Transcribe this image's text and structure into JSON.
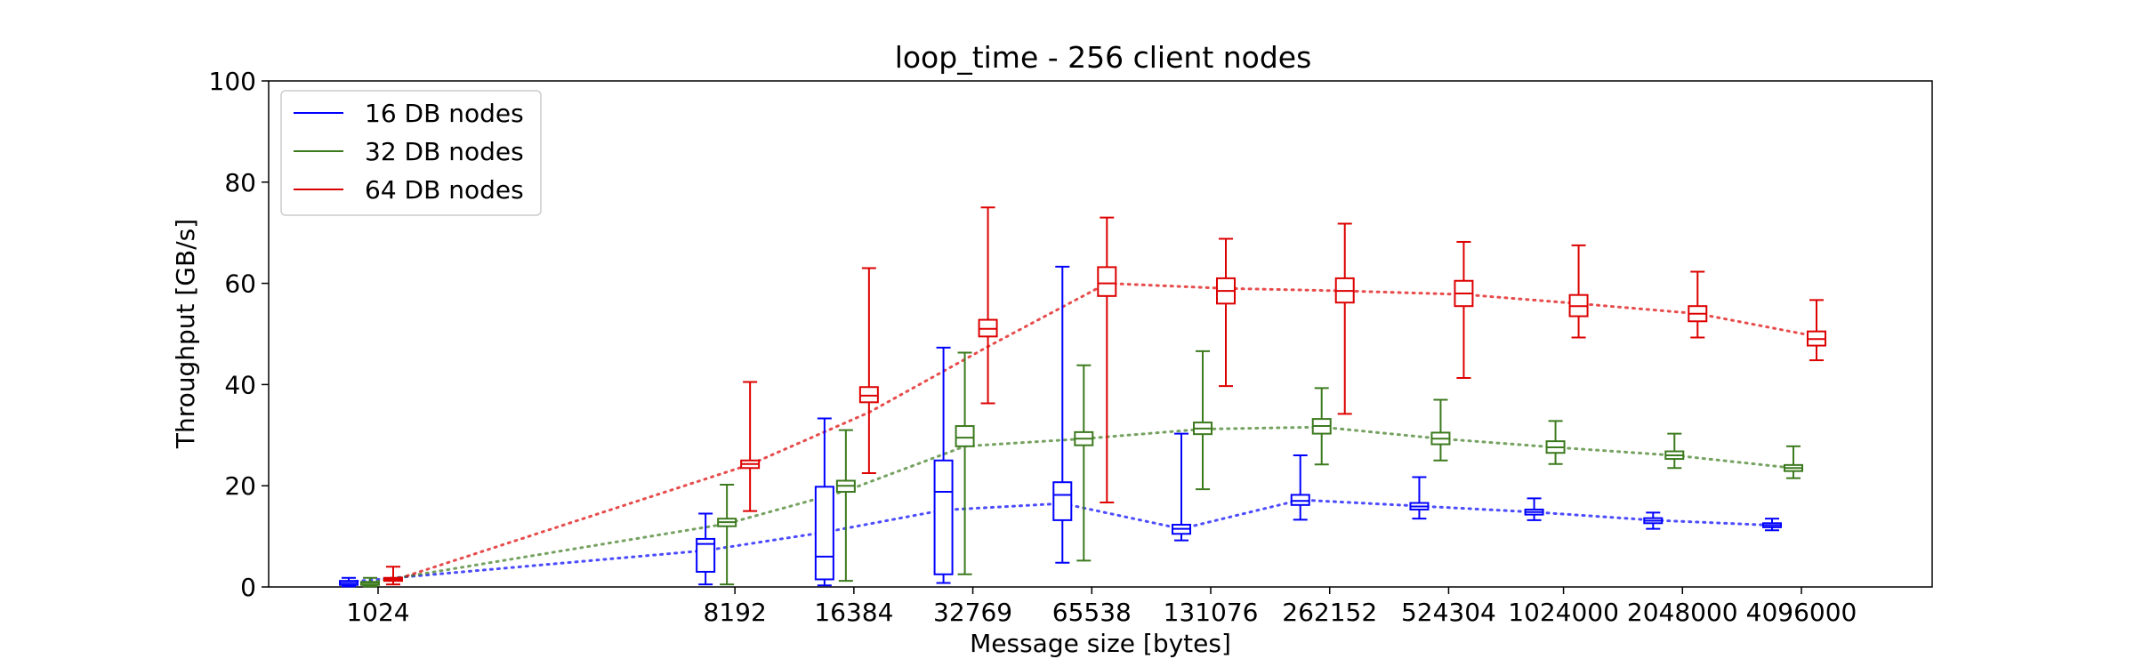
{
  "chart_data": {
    "type": "box",
    "title": "loop_time - 256 client nodes",
    "xlabel": "Message size [bytes]",
    "ylabel": "Throughput [GB/s]",
    "ylim": [
      0,
      100
    ],
    "yticks": [
      0,
      20,
      40,
      60,
      80,
      100
    ],
    "categories": [
      "1024",
      "8192",
      "16384",
      "32769",
      "65538",
      "131076",
      "262152",
      "524304",
      "1024000",
      "2048000",
      "4096000"
    ],
    "grid": false,
    "legend_position": "top-left",
    "series": [
      {
        "name": "16 DB nodes",
        "color": "#0000ff",
        "mean_line": [
          1.0,
          7.2,
          10.8,
          15.2,
          16.5,
          11.5,
          17.2,
          16.0,
          14.8,
          13.2,
          12.2
        ],
        "boxes": [
          {
            "min": 0.1,
            "q1": 0.4,
            "median": 0.8,
            "q3": 1.2,
            "max": 1.8
          },
          {
            "min": 0.5,
            "q1": 3.0,
            "median": 8.5,
            "q3": 9.5,
            "max": 14.5
          },
          {
            "min": 0.3,
            "q1": 1.5,
            "median": 6.0,
            "q3": 19.8,
            "max": 33.3
          },
          {
            "min": 0.8,
            "q1": 2.5,
            "median": 18.8,
            "q3": 25.0,
            "max": 47.3
          },
          {
            "min": 4.8,
            "q1": 13.2,
            "median": 18.2,
            "q3": 20.7,
            "max": 63.3
          },
          {
            "min": 9.2,
            "q1": 10.5,
            "median": 11.5,
            "q3": 12.3,
            "max": 30.3
          },
          {
            "min": 13.3,
            "q1": 16.2,
            "median": 17.0,
            "q3": 18.2,
            "max": 26.0
          },
          {
            "min": 13.5,
            "q1": 15.3,
            "median": 15.9,
            "q3": 16.6,
            "max": 21.7
          },
          {
            "min": 13.2,
            "q1": 14.3,
            "median": 14.8,
            "q3": 15.3,
            "max": 17.5
          },
          {
            "min": 11.5,
            "q1": 12.6,
            "median": 13.1,
            "q3": 13.6,
            "max": 14.7
          },
          {
            "min": 11.2,
            "q1": 11.8,
            "median": 12.2,
            "q3": 12.6,
            "max": 13.5
          }
        ]
      },
      {
        "name": "32 DB nodes",
        "color": "#3c7a1e",
        "mean_line": [
          0.9,
          12.5,
          19.0,
          27.8,
          29.3,
          31.2,
          31.6,
          29.3,
          27.6,
          26.0,
          23.5
        ],
        "boxes": [
          {
            "min": 0.1,
            "q1": 0.4,
            "median": 0.8,
            "q3": 1.0,
            "max": 1.8
          },
          {
            "min": 0.5,
            "q1": 12.0,
            "median": 12.8,
            "q3": 13.5,
            "max": 20.2
          },
          {
            "min": 1.2,
            "q1": 18.8,
            "median": 20.0,
            "q3": 21.0,
            "max": 31.0
          },
          {
            "min": 2.5,
            "q1": 27.8,
            "median": 29.5,
            "q3": 31.8,
            "max": 46.3
          },
          {
            "min": 5.2,
            "q1": 28.0,
            "median": 29.3,
            "q3": 30.6,
            "max": 43.8
          },
          {
            "min": 19.3,
            "q1": 30.2,
            "median": 31.3,
            "q3": 32.5,
            "max": 46.6
          },
          {
            "min": 24.2,
            "q1": 30.3,
            "median": 31.8,
            "q3": 33.2,
            "max": 39.3
          },
          {
            "min": 25.0,
            "q1": 28.2,
            "median": 29.3,
            "q3": 30.5,
            "max": 37.0
          },
          {
            "min": 24.3,
            "q1": 26.5,
            "median": 27.6,
            "q3": 28.8,
            "max": 32.8
          },
          {
            "min": 23.5,
            "q1": 25.3,
            "median": 26.0,
            "q3": 26.8,
            "max": 30.3
          },
          {
            "min": 21.5,
            "q1": 22.9,
            "median": 23.5,
            "q3": 24.1,
            "max": 27.8
          }
        ]
      },
      {
        "name": "64 DB nodes",
        "color": "#dd0000",
        "mean_line": [
          1.3,
          24.2,
          34.5,
          47.5,
          60.0,
          59.0,
          58.5,
          57.8,
          56.0,
          54.0,
          49.5
        ],
        "boxes": [
          {
            "min": 0.5,
            "q1": 1.2,
            "median": 1.5,
            "q3": 1.8,
            "max": 4.0
          },
          {
            "min": 15.0,
            "q1": 23.5,
            "median": 24.3,
            "q3": 25.0,
            "max": 40.5
          },
          {
            "min": 22.5,
            "q1": 36.5,
            "median": 37.8,
            "q3": 39.5,
            "max": 63.0
          },
          {
            "min": 36.3,
            "q1": 49.5,
            "median": 51.0,
            "q3": 52.8,
            "max": 75.0
          },
          {
            "min": 16.7,
            "q1": 57.5,
            "median": 60.0,
            "q3": 63.2,
            "max": 73.0
          },
          {
            "min": 39.7,
            "q1": 56.0,
            "median": 58.5,
            "q3": 61.0,
            "max": 68.8
          },
          {
            "min": 34.2,
            "q1": 56.2,
            "median": 58.5,
            "q3": 61.0,
            "max": 71.8
          },
          {
            "min": 41.3,
            "q1": 55.5,
            "median": 58.0,
            "q3": 60.5,
            "max": 68.2
          },
          {
            "min": 49.3,
            "q1": 53.5,
            "median": 55.5,
            "q3": 57.7,
            "max": 67.5
          },
          {
            "min": 49.3,
            "q1": 52.5,
            "median": 54.0,
            "q3": 55.5,
            "max": 62.3
          },
          {
            "min": 44.8,
            "q1": 47.7,
            "median": 49.0,
            "q3": 50.5,
            "max": 56.7
          }
        ]
      }
    ]
  }
}
